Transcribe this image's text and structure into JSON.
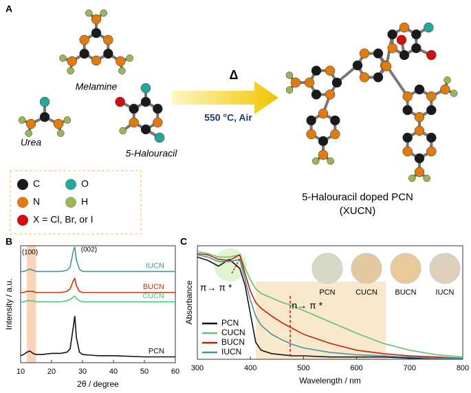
{
  "diagram": {
    "panel": "A",
    "reactants": [
      "Melamine",
      "Urea",
      "5-Halouracil"
    ],
    "condition_symbol": "Δ",
    "condition": "550 °C, Air",
    "product": "5-Halouracil doped PCN",
    "product_abbr": "(XUCN)",
    "legend": [
      {
        "symbol": "C"
      },
      {
        "symbol": "O"
      },
      {
        "symbol": "N"
      },
      {
        "symbol": "H"
      },
      {
        "symbol": "X = Cl, Br, or I"
      }
    ]
  },
  "chart_data": [
    {
      "type": "line",
      "panel": "B",
      "x_label": "2θ / degree",
      "y_label": "Intensity / a.u.",
      "annotations": [
        "(100)",
        "(002)"
      ],
      "x": [
        10,
        11,
        12,
        13,
        14,
        15,
        17,
        20,
        23,
        25,
        26,
        27,
        27.5,
        28,
        29,
        30,
        35,
        40,
        50,
        60
      ],
      "xlim": [
        10,
        60
      ],
      "xticks": [
        10,
        20,
        30,
        40,
        50,
        60
      ],
      "ylim": [
        0,
        100
      ],
      "highlight_range": [
        12,
        15
      ],
      "series": [
        {
          "name": "PCN",
          "color": "#111111",
          "values": [
            6,
            7,
            9,
            10,
            8,
            7,
            7,
            8,
            8,
            9,
            12,
            30,
            40,
            22,
            9,
            7,
            6,
            6,
            5,
            5
          ]
        },
        {
          "name": "CUCN",
          "color": "#4cc77a",
          "values": [
            52,
            52,
            53,
            53,
            53,
            52,
            52,
            52,
            52,
            53,
            54,
            56,
            57,
            55,
            53,
            52,
            52,
            52,
            52,
            52
          ]
        },
        {
          "name": "BUCN",
          "color": "#cc3300",
          "values": [
            60,
            60,
            61,
            61,
            61,
            60,
            60,
            60,
            60,
            61,
            63,
            70,
            72,
            66,
            61,
            60,
            60,
            60,
            60,
            60
          ]
        },
        {
          "name": "IUCN",
          "color": "#4a8fa0",
          "values": [
            78,
            78,
            79,
            80,
            79,
            78,
            78,
            78,
            78,
            79,
            82,
            95,
            99,
            88,
            80,
            78,
            78,
            78,
            78,
            78
          ]
        }
      ]
    },
    {
      "type": "line",
      "panel": "C",
      "x_label": "Wavelength / nm",
      "y_label": "Absorbance",
      "annotations": [
        "π→ π *",
        "n→ π *"
      ],
      "x": [
        300,
        320,
        340,
        360,
        380,
        390,
        400,
        410,
        420,
        440,
        460,
        480,
        500,
        550,
        600,
        650,
        700,
        750,
        800
      ],
      "xlim": [
        300,
        800
      ],
      "xticks": [
        300,
        400,
        500,
        600,
        700,
        800
      ],
      "ylim": [
        0,
        100
      ],
      "highlight_range": [
        410,
        655
      ],
      "series": [
        {
          "name": "PCN",
          "color": "#111111",
          "values": [
            90,
            87,
            82,
            88,
            80,
            65,
            40,
            15,
            8,
            5,
            4,
            3,
            3,
            2,
            2,
            2,
            1,
            1,
            1
          ]
        },
        {
          "name": "CUCN",
          "color": "#5cc46e",
          "values": [
            95,
            93,
            90,
            90,
            92,
            80,
            70,
            62,
            58,
            54,
            50,
            47,
            43,
            33,
            23,
            14,
            8,
            4,
            2
          ]
        },
        {
          "name": "BUCN",
          "color": "#cc1a00",
          "values": [
            93,
            92,
            88,
            87,
            92,
            75,
            60,
            50,
            45,
            38,
            32,
            27,
            22,
            14,
            8,
            5,
            3,
            2,
            1
          ]
        },
        {
          "name": "IUCN",
          "color": "#4a90a8",
          "values": [
            92,
            90,
            86,
            86,
            88,
            70,
            52,
            38,
            30,
            22,
            17,
            13,
            10,
            6,
            4,
            3,
            2,
            1,
            1
          ]
        }
      ]
    }
  ]
}
